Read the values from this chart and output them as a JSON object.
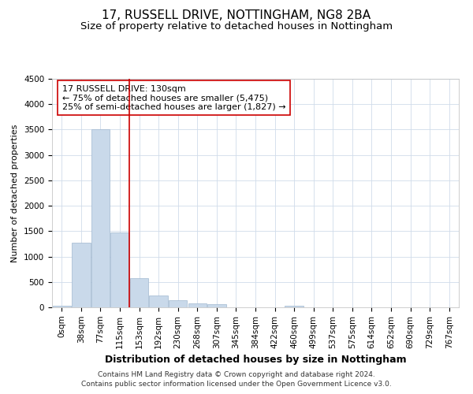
{
  "title": "17, RUSSELL DRIVE, NOTTINGHAM, NG8 2BA",
  "subtitle": "Size of property relative to detached houses in Nottingham",
  "xlabel": "Distribution of detached houses by size in Nottingham",
  "ylabel": "Number of detached properties",
  "footer_line1": "Contains HM Land Registry data © Crown copyright and database right 2024.",
  "footer_line2": "Contains public sector information licensed under the Open Government Licence v3.0.",
  "categories": [
    "0sqm",
    "38sqm",
    "77sqm",
    "115sqm",
    "153sqm",
    "192sqm",
    "230sqm",
    "268sqm",
    "307sqm",
    "345sqm",
    "384sqm",
    "422sqm",
    "460sqm",
    "499sqm",
    "537sqm",
    "575sqm",
    "614sqm",
    "652sqm",
    "690sqm",
    "729sqm",
    "767sqm"
  ],
  "values": [
    30,
    1280,
    3500,
    1480,
    570,
    240,
    140,
    80,
    55,
    0,
    0,
    0,
    35,
    0,
    0,
    0,
    0,
    0,
    0,
    0,
    0
  ],
  "bar_color": "#c9d9ea",
  "bar_edge_color": "#a0b8d0",
  "vline_x": 3.5,
  "vline_color": "#cc0000",
  "annotation_text": "17 RUSSELL DRIVE: 130sqm\n← 75% of detached houses are smaller (5,475)\n25% of semi-detached houses are larger (1,827) →",
  "annotation_box_color": "#ffffff",
  "annotation_box_edge_color": "#cc0000",
  "ylim": [
    0,
    4500
  ],
  "yticks": [
    0,
    500,
    1000,
    1500,
    2000,
    2500,
    3000,
    3500,
    4000,
    4500
  ],
  "title_fontsize": 11,
  "subtitle_fontsize": 9.5,
  "xlabel_fontsize": 9,
  "ylabel_fontsize": 8,
  "tick_fontsize": 7.5,
  "annotation_fontsize": 8,
  "footer_fontsize": 6.5,
  "bg_color": "#ffffff",
  "grid_color": "#d0dcea"
}
